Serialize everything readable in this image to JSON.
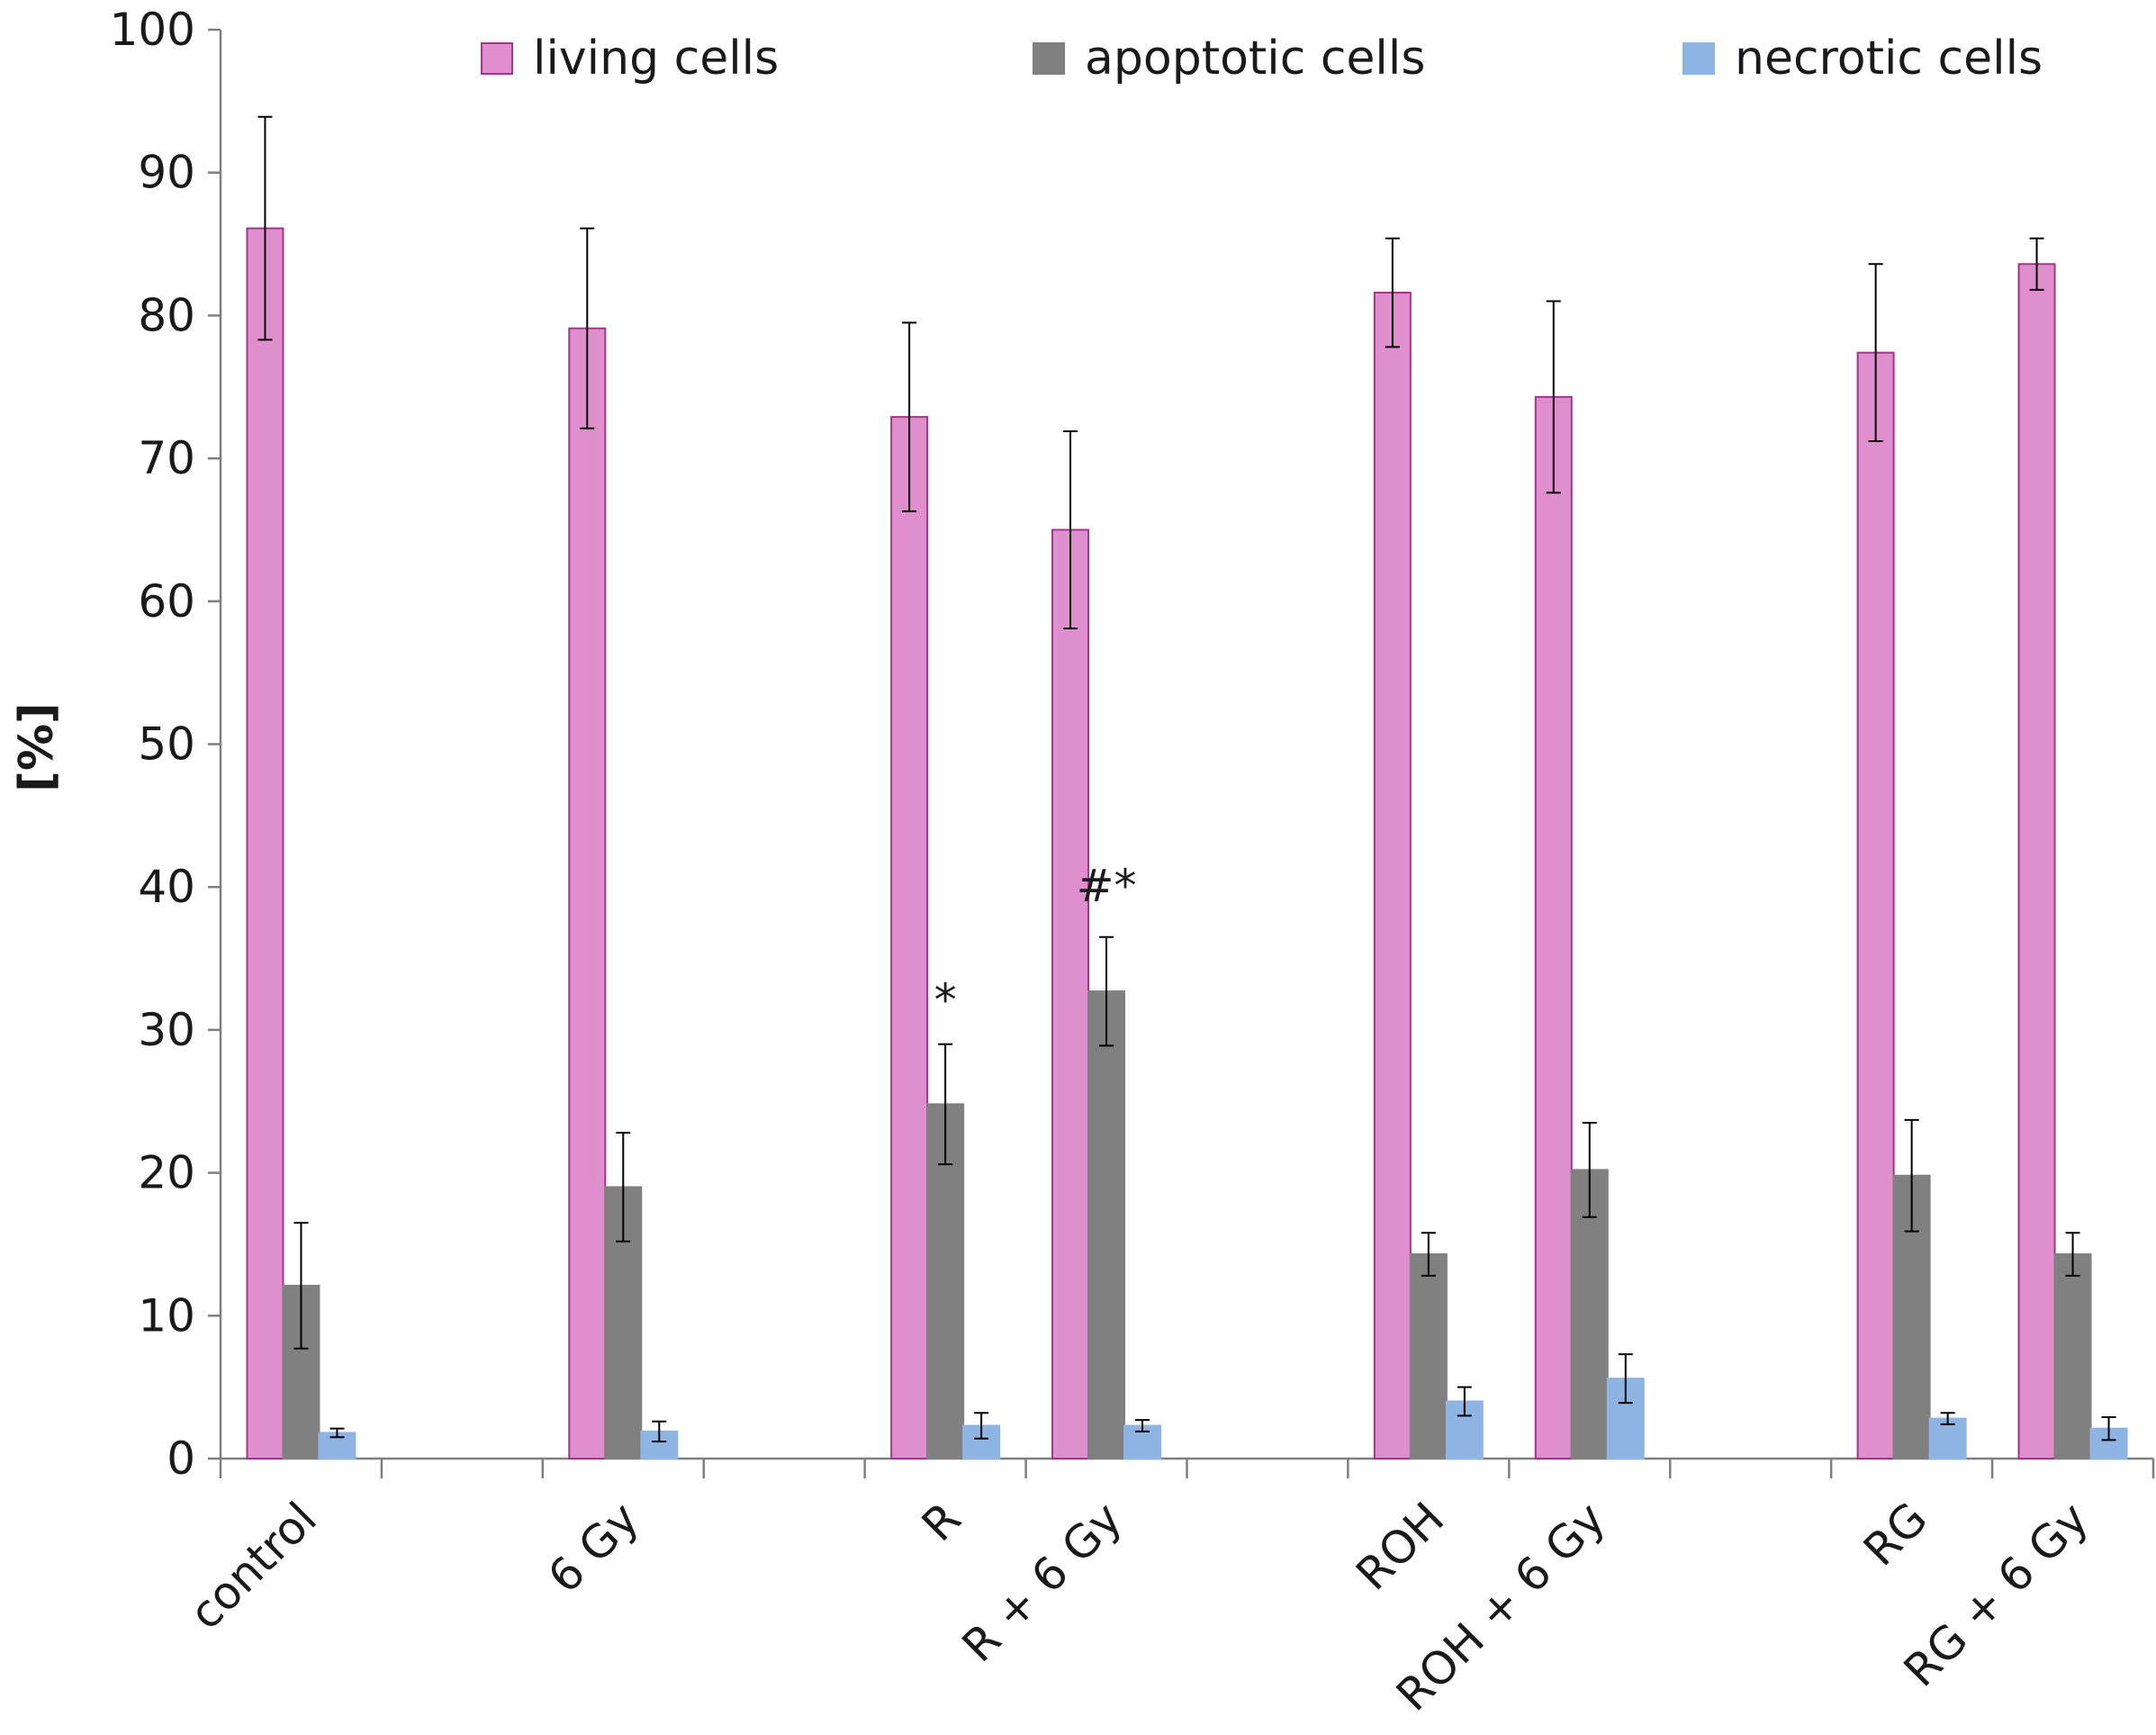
{
  "chart_data": {
    "type": "bar",
    "title": "",
    "xlabel": "",
    "ylabel": "[%]",
    "ylim": [
      0,
      100
    ],
    "yticks": [
      0,
      10,
      20,
      30,
      40,
      50,
      60,
      70,
      80,
      90,
      100
    ],
    "grid": false,
    "legend_position": "top",
    "categories": [
      "control",
      "",
      "6 Gy",
      "",
      "R",
      "R + 6 Gy",
      "",
      "ROH",
      "ROH + 6 Gy",
      "",
      "RG",
      "RG + 6 Gy"
    ],
    "series": [
      {
        "name": "living cells",
        "color": "#df8fce",
        "edge": "#a4358e",
        "values": [
          86.1,
          null,
          79.1,
          null,
          72.9,
          65.0,
          null,
          81.6,
          74.3,
          null,
          77.4,
          83.6
        ],
        "errors": [
          7.8,
          null,
          7.0,
          null,
          6.6,
          6.9,
          null,
          3.8,
          6.7,
          null,
          6.2,
          1.8
        ]
      },
      {
        "name": "apoptotic cells",
        "color": "#808080",
        "edge": "#808080",
        "values": [
          12.1,
          null,
          19.0,
          null,
          24.8,
          32.7,
          null,
          14.3,
          20.2,
          null,
          19.8,
          14.3
        ],
        "errors": [
          4.4,
          null,
          3.8,
          null,
          4.2,
          3.8,
          null,
          1.5,
          3.3,
          null,
          3.9,
          1.5
        ]
      },
      {
        "name": "necrotic cells",
        "color": "#8eb4e3",
        "edge": "#8eb4e3",
        "values": [
          1.8,
          null,
          1.9,
          null,
          2.3,
          2.3,
          null,
          4.0,
          5.6,
          null,
          2.8,
          2.1
        ],
        "errors": [
          0.3,
          null,
          0.7,
          null,
          0.9,
          0.4,
          null,
          1.0,
          1.7,
          null,
          0.4,
          0.8
        ]
      }
    ],
    "annotations": [
      {
        "text": "*",
        "category_index": 4,
        "series_index": 1,
        "y": 32
      },
      {
        "text": "#*",
        "category_index": 5,
        "series_index": 1,
        "y": 40
      }
    ]
  }
}
